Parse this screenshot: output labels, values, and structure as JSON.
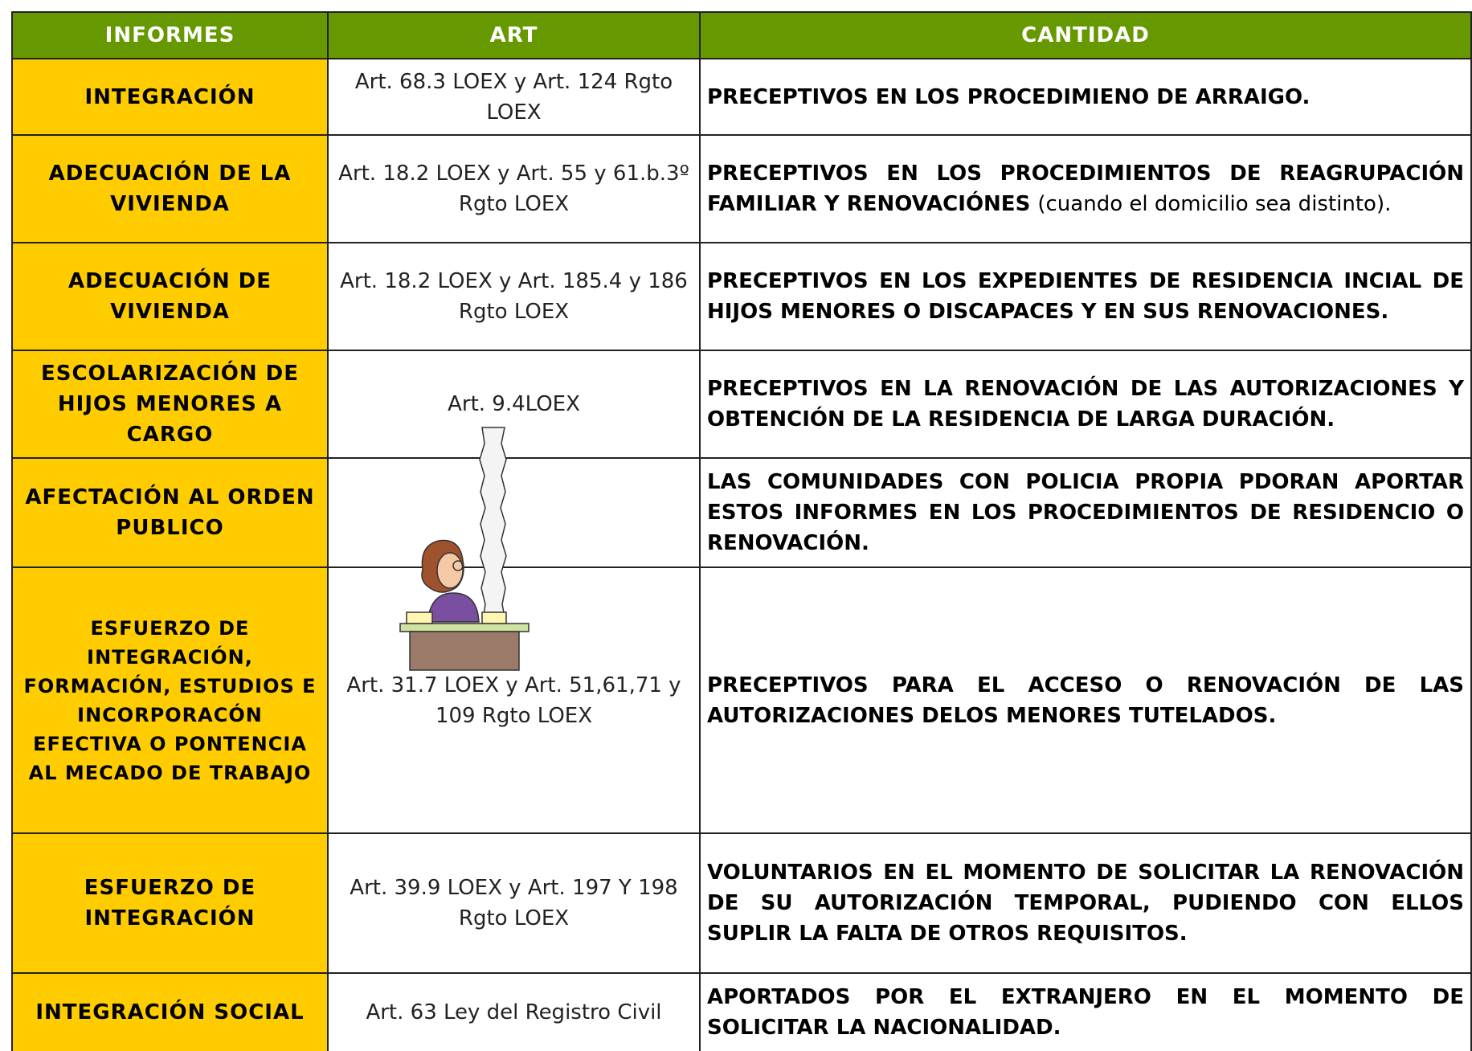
{
  "table": {
    "header": [
      "INFORMES",
      "ART",
      "CANTIDAD"
    ],
    "rows": [
      {
        "informe": "INTEGRACIÓN",
        "art": "Art. 68.3 LOEX y Art. 124 Rgto LOEX",
        "cantidad": "PRECEPTIVOS EN LOS PROCEDIMIENO DE ARRAIGO."
      },
      {
        "informe": "ADECUACIÓN DE LA VIVIENDA",
        "art": "Art. 18.2 LOEX y Art. 55 y 61.b.3º Rgto LOEX",
        "cantidad": "PRECEPTIVOS EN LOS PROCEDIMIENTOS DE REAGRUPACIÓN FAMILIAR Y RENOVACIÓNES",
        "cantidad_note": "(cuando el domicilio sea distinto)."
      },
      {
        "informe": "ADECUACIÓN DE VIVIENDA",
        "art": "Art. 18.2 LOEX y Art. 185.4 y 186 Rgto LOEX",
        "cantidad": "PRECEPTIVOS EN LOS EXPEDIENTES DE RESIDENCIA INCIAL DE HIJOS MENORES O DISCAPACES Y EN SUS RENOVACIONES."
      },
      {
        "informe": "ESCOLARIZACIÓN DE HIJOS MENORES A CARGO",
        "art": "Art. 9.4LOEX",
        "cantidad": "PRECEPTIVOS EN LA RENOVACIÓN DE LAS AUTORIZACIONES Y OBTENCIÓN DE LA RESIDENCIA DE LARGA DURACIÓN."
      },
      {
        "informe": "AFECTACIÓN AL ORDEN PUBLICO",
        "art": "",
        "cantidad": "LAS COMUNIDADES CON POLICIA PROPIA PDORAN APORTAR ESTOS INFORMES EN LOS PROCEDIMIENTOS DE RESIDENCIO O RENOVACIÓN."
      },
      {
        "informe": "ESFUERZO DE INTEGRACIÓN, FORMACIÓN, ESTUDIOS E INCORPORACÓN EFECTIVA O PONTENCIA AL MECADO DE TRABAJO",
        "art": "Art. 31.7 LOEX y Art. 51,61,71 y 109 Rgto LOEX",
        "cantidad": "PRECEPTIVOS PARA EL ACCESO O RENOVACIÓN DE LAS AUTORIZACIONES DELOS MENORES TUTELADOS."
      },
      {
        "informe": "ESFUERZO DE INTEGRACIÓN",
        "art": "Art. 39.9 LOEX y Art. 197 Y 198 Rgto LOEX",
        "cantidad": "VOLUNTARIOS EN EL MOMENTO DE SOLICITAR LA RENOVACIÓN DE SU AUTORIZACIÓN TEMPORAL, PUDIENDO CON ELLOS SUPLIR LA FALTA DE OTROS REQUISITOS."
      },
      {
        "informe": "INTEGRACIÓN SOCIAL",
        "art": "Art. 63 Ley del Registro Civil",
        "cantidad": "APORTADOS POR EL EXTRANJERO EN EL MOMENTO DE SOLICITAR LA NACIONALIDAD."
      }
    ]
  }
}
